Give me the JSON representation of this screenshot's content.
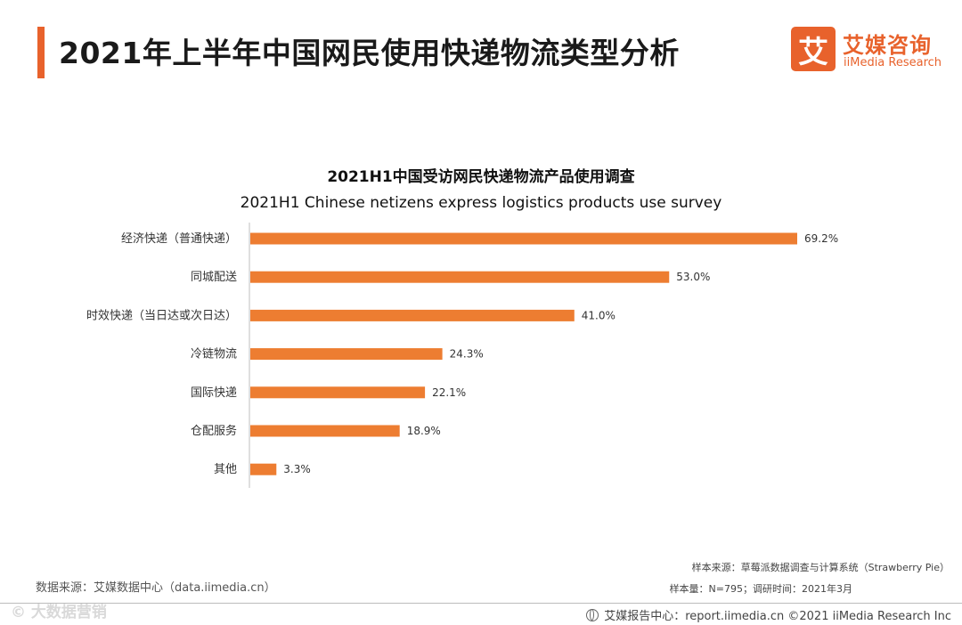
{
  "header": {
    "title": "2021年上半年中国网民使用快递物流类型分析",
    "logo_mark": "艾",
    "logo_cn": "艾媒咨询",
    "logo_en": "iiMedia Research"
  },
  "chart_data": {
    "type": "bar",
    "orientation": "horizontal",
    "title": "2021H1中国受访网民快递物流产品使用调查",
    "subtitle": "2021H1 Chinese netizens express logistics products use survey",
    "categories": [
      "经济快递（普通快递）",
      "同城配送",
      "时效快递（当日达或次日达）",
      "冷链物流",
      "国际快递",
      "仓配服务",
      "其他"
    ],
    "values": [
      69.2,
      53.0,
      41.0,
      24.3,
      22.1,
      18.9,
      3.3
    ],
    "value_labels": [
      "69.2%",
      "53.0%",
      "41.0%",
      "24.3%",
      "22.1%",
      "18.9%",
      "3.3%"
    ],
    "unit": "%",
    "xlim": [
      0,
      69.2
    ],
    "bar_color": "#ed7d31",
    "xlabel": "",
    "ylabel": ""
  },
  "footer": {
    "source": "数据来源：艾媒数据中心（data.iimedia.cn）",
    "sample_source": "样本来源：草莓派数据调查与计算系统（Strawberry Pie）",
    "sample_info": "样本量：N=795；调研时间：2021年3月",
    "copyright": "艾媒报告中心：report.iimedia.cn   ©2021  iiMedia Research  Inc",
    "watermark": "© 大数据营销"
  },
  "colors": {
    "accent": "#e8622c",
    "bar": "#ed7d31"
  }
}
